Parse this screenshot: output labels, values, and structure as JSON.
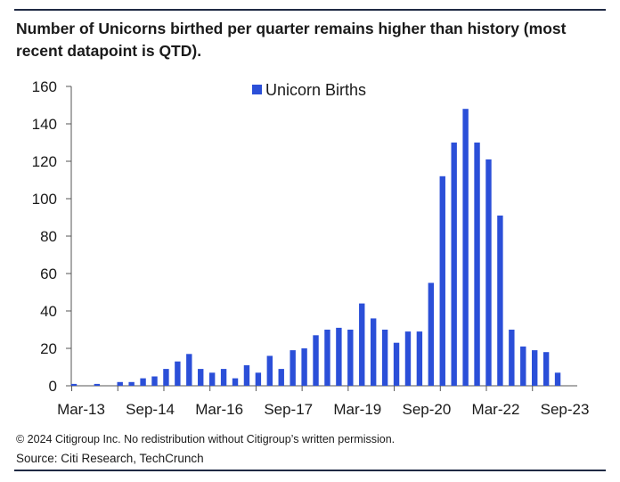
{
  "header": {
    "title": "Number of Unicorns birthed per quarter remains higher than history (most recent datapoint is QTD)."
  },
  "footer": {
    "copyright": "© 2024 Citigroup Inc. No redistribution without Citigroup’s written permission.",
    "source": "Source: Citi Research, TechCrunch"
  },
  "colors": {
    "bar": "#2b4fd8",
    "axis": "#555555",
    "rule": "#1f2a44"
  },
  "chart_data": {
    "type": "bar",
    "title": "Number of Unicorns birthed per quarter remains higher than history (most recent datapoint is QTD).",
    "xlabel": "",
    "ylabel": "",
    "ylim": [
      0,
      160
    ],
    "yticks": [
      0,
      20,
      40,
      60,
      80,
      100,
      120,
      140,
      160
    ],
    "grid": false,
    "legend": "top-center",
    "categories": [
      "Mar-13",
      "Jun-13",
      "Sep-13",
      "Dec-13",
      "Mar-14",
      "Jun-14",
      "Sep-14",
      "Dec-14",
      "Mar-15",
      "Jun-15",
      "Sep-15",
      "Dec-15",
      "Mar-16",
      "Jun-16",
      "Sep-16",
      "Dec-16",
      "Mar-17",
      "Jun-17",
      "Sep-17",
      "Dec-17",
      "Mar-18",
      "Jun-18",
      "Sep-18",
      "Dec-18",
      "Mar-19",
      "Jun-19",
      "Sep-19",
      "Dec-19",
      "Mar-20",
      "Jun-20",
      "Sep-20",
      "Dec-20",
      "Mar-21",
      "Jun-21",
      "Sep-21",
      "Dec-21",
      "Mar-22",
      "Jun-22",
      "Sep-22",
      "Dec-22",
      "Mar-23",
      "Jun-23",
      "Sep-23",
      "Dec-23"
    ],
    "x_tick_labels": [
      "Mar-13",
      "Sep-14",
      "Mar-16",
      "Sep-17",
      "Mar-19",
      "Sep-20",
      "Mar-22",
      "Sep-23"
    ],
    "series": [
      {
        "name": "Unicorn Births",
        "values": [
          1,
          0,
          1,
          0,
          2,
          2,
          4,
          5,
          9,
          13,
          17,
          9,
          7,
          9,
          4,
          11,
          7,
          16,
          9,
          19,
          20,
          27,
          30,
          31,
          30,
          44,
          36,
          30,
          23,
          29,
          29,
          55,
          112,
          130,
          148,
          130,
          121,
          91,
          30,
          21,
          19,
          18,
          7,
          0
        ]
      }
    ]
  }
}
